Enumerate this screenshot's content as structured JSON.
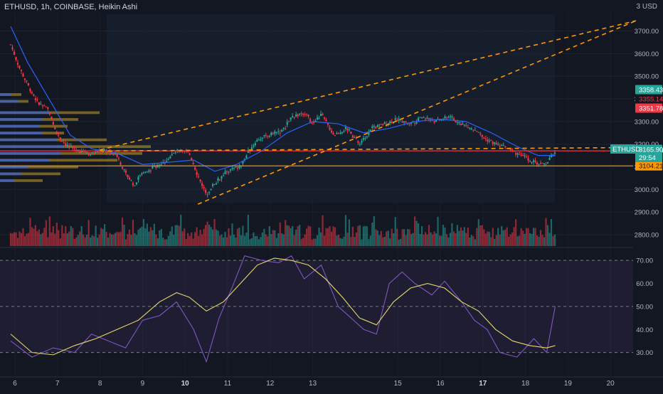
{
  "header": {
    "symbol_line": "ETHUSD, 1h, COINBASE, Heikin Ashi",
    "currency": "3 USD"
  },
  "chart_data": [
    {
      "type": "candlestick",
      "symbol": "ETHUSD",
      "interval": "1h",
      "exchange": "COINBASE",
      "style": "Heikin Ashi",
      "ylim": [
        2750,
        3780
      ],
      "y_ticks": [
        2800,
        2900,
        3000,
        3100,
        3200,
        3300,
        3400,
        3500,
        3600,
        3700
      ],
      "y_tick_labels": [
        "2800.00",
        "2900.00",
        "3000.00",
        "3100.00",
        "3200.00",
        "3300.00",
        "3400.00",
        "3500.00",
        "3600.00",
        "3700.00"
      ],
      "x_ticks": [
        {
          "label": "6",
          "day": 6,
          "bold": false
        },
        {
          "label": "7",
          "day": 7,
          "bold": false
        },
        {
          "label": "8",
          "day": 8,
          "bold": false
        },
        {
          "label": "9",
          "day": 9,
          "bold": false
        },
        {
          "label": "10",
          "day": 10,
          "bold": true
        },
        {
          "label": "11",
          "day": 11,
          "bold": false
        },
        {
          "label": "12",
          "day": 12,
          "bold": false
        },
        {
          "label": "13",
          "day": 13,
          "bold": false
        },
        {
          "label": "15",
          "day": 15,
          "bold": false
        },
        {
          "label": "16",
          "day": 16,
          "bold": false
        },
        {
          "label": "17",
          "day": 17,
          "bold": true
        },
        {
          "label": "18",
          "day": 18,
          "bold": false
        },
        {
          "label": "19",
          "day": 19,
          "bold": false
        },
        {
          "label": "20",
          "day": 20,
          "bold": false
        }
      ],
      "price_path": [
        [
          5.9,
          3640
        ],
        [
          6.1,
          3540
        ],
        [
          6.3,
          3460
        ],
        [
          6.55,
          3380
        ],
        [
          6.8,
          3350
        ],
        [
          7.0,
          3240
        ],
        [
          7.25,
          3190
        ],
        [
          7.5,
          3170
        ],
        [
          7.8,
          3160
        ],
        [
          8.2,
          3170
        ],
        [
          8.4,
          3150
        ],
        [
          8.6,
          3070
        ],
        [
          8.8,
          3020
        ],
        [
          9.0,
          3080
        ],
        [
          9.2,
          3090
        ],
        [
          9.5,
          3120
        ],
        [
          9.8,
          3170
        ],
        [
          10.1,
          3160
        ],
        [
          10.3,
          3060
        ],
        [
          10.5,
          2980
        ],
        [
          10.7,
          3030
        ],
        [
          11.0,
          3080
        ],
        [
          11.3,
          3100
        ],
        [
          11.5,
          3170
        ],
        [
          11.7,
          3220
        ],
        [
          12.0,
          3240
        ],
        [
          12.3,
          3260
        ],
        [
          12.5,
          3320
        ],
        [
          12.8,
          3340
        ],
        [
          13.0,
          3290
        ],
        [
          13.2,
          3330
        ],
        [
          13.5,
          3240
        ],
        [
          13.8,
          3270
        ],
        [
          14.1,
          3200
        ],
        [
          14.4,
          3270
        ],
        [
          14.7,
          3290
        ],
        [
          15.0,
          3310
        ],
        [
          15.3,
          3290
        ],
        [
          15.6,
          3320
        ],
        [
          15.9,
          3300
        ],
        [
          16.2,
          3320
        ],
        [
          16.5,
          3290
        ],
        [
          16.8,
          3260
        ],
        [
          17.0,
          3230
        ],
        [
          17.3,
          3200
        ],
        [
          17.6,
          3180
        ],
        [
          17.9,
          3150
        ],
        [
          18.2,
          3120
        ],
        [
          18.45,
          3110
        ],
        [
          18.7,
          3166
        ]
      ],
      "moving_average": [
        [
          5.9,
          3720
        ],
        [
          6.3,
          3560
        ],
        [
          6.8,
          3400
        ],
        [
          7.3,
          3240
        ],
        [
          7.8,
          3180
        ],
        [
          8.4,
          3160
        ],
        [
          9.0,
          3110
        ],
        [
          9.6,
          3120
        ],
        [
          10.2,
          3130
        ],
        [
          10.7,
          3080
        ],
        [
          11.2,
          3110
        ],
        [
          11.8,
          3170
        ],
        [
          12.4,
          3250
        ],
        [
          13.0,
          3300
        ],
        [
          13.6,
          3290
        ],
        [
          14.2,
          3250
        ],
        [
          14.8,
          3270
        ],
        [
          15.4,
          3300
        ],
        [
          16.0,
          3310
        ],
        [
          16.6,
          3300
        ],
        [
          17.2,
          3250
        ],
        [
          17.8,
          3190
        ],
        [
          18.3,
          3150
        ],
        [
          18.7,
          3150
        ]
      ],
      "volume_range": [
        0,
        100
      ],
      "horizontal_levels": [
        {
          "price": 3170.4,
          "label": "3170.40",
          "color": "#f23645"
        },
        {
          "price": 3104.21,
          "label": "3104.21",
          "color": "#ff9800"
        }
      ],
      "trend_lines": [
        {
          "from": [
            10.3,
            2935
          ],
          "to": [
            20.6,
            3745
          ],
          "color": "#ff9800",
          "style": "dashed"
        },
        {
          "from": [
            8.0,
            3170
          ],
          "to": [
            20.6,
            3185
          ],
          "color": "#ff9800",
          "style": "dashed"
        }
      ],
      "price_labels": [
        {
          "price": 3358.43,
          "label": "3358.43",
          "bg": "#26a69a",
          "text": "#ffffff"
        },
        {
          "price": 3355.14,
          "label": "3355.14",
          "bg": "#131722",
          "text": "#f23645"
        },
        {
          "price": 3351.78,
          "label": "3351.78",
          "bg": "#f23645",
          "text": "#ffffff"
        },
        {
          "price": 3170.4,
          "label": "3170.40",
          "bg": "#f23645",
          "text": "#ffffff"
        },
        {
          "price": 3165.9,
          "label": "3165.90",
          "bg": "#26a69a",
          "text": "#ffffff"
        },
        {
          "price": 3104.21,
          "label": "3104.21",
          "bg": "#ff9800",
          "text": "#131722"
        }
      ],
      "last_price": {
        "symbol": "ETHUSD",
        "price": "3165.90",
        "countdown": "29:54"
      }
    },
    {
      "type": "line",
      "name": "RSI",
      "ylim": [
        20,
        75
      ],
      "y_ticks": [
        30,
        40,
        50,
        60,
        70
      ],
      "y_tick_labels": [
        "30.00",
        "40.00",
        "50.00",
        "60.00",
        "70.00"
      ],
      "band": [
        30,
        70
      ],
      "series": [
        {
          "color": "#7e57c2",
          "points": [
            [
              5.9,
              35
            ],
            [
              6.4,
              28
            ],
            [
              6.9,
              32
            ],
            [
              7.4,
              30
            ],
            [
              7.8,
              38
            ],
            [
              8.2,
              35
            ],
            [
              8.6,
              32
            ],
            [
              9.0,
              44
            ],
            [
              9.4,
              46
            ],
            [
              9.8,
              52
            ],
            [
              10.2,
              40
            ],
            [
              10.5,
              26
            ],
            [
              10.8,
              45
            ],
            [
              11.1,
              58
            ],
            [
              11.4,
              72
            ],
            [
              11.8,
              70
            ],
            [
              12.2,
              69
            ],
            [
              12.5,
              72
            ],
            [
              12.8,
              62
            ],
            [
              13.2,
              68
            ],
            [
              13.6,
              50
            ],
            [
              13.9,
              45
            ],
            [
              14.2,
              40
            ],
            [
              14.5,
              38
            ],
            [
              14.8,
              60
            ],
            [
              15.1,
              65
            ],
            [
              15.4,
              60
            ],
            [
              15.8,
              55
            ],
            [
              16.1,
              61
            ],
            [
              16.5,
              52
            ],
            [
              16.8,
              44
            ],
            [
              17.1,
              40
            ],
            [
              17.4,
              30
            ],
            [
              17.8,
              28
            ],
            [
              18.2,
              36
            ],
            [
              18.5,
              30
            ],
            [
              18.7,
              50
            ]
          ]
        },
        {
          "color": "#e8d86a",
          "points": [
            [
              5.9,
              38
            ],
            [
              6.4,
              30
            ],
            [
              6.9,
              29
            ],
            [
              7.4,
              33
            ],
            [
              7.9,
              36
            ],
            [
              8.4,
              40
            ],
            [
              8.9,
              44
            ],
            [
              9.4,
              52
            ],
            [
              9.8,
              56
            ],
            [
              10.1,
              54
            ],
            [
              10.5,
              48
            ],
            [
              10.9,
              52
            ],
            [
              11.3,
              60
            ],
            [
              11.7,
              68
            ],
            [
              12.1,
              71
            ],
            [
              12.5,
              70
            ],
            [
              12.9,
              68
            ],
            [
              13.3,
              62
            ],
            [
              13.7,
              54
            ],
            [
              14.1,
              45
            ],
            [
              14.5,
              42
            ],
            [
              14.9,
              52
            ],
            [
              15.3,
              58
            ],
            [
              15.7,
              60
            ],
            [
              16.1,
              58
            ],
            [
              16.5,
              52
            ],
            [
              16.9,
              48
            ],
            [
              17.3,
              40
            ],
            [
              17.7,
              35
            ],
            [
              18.1,
              33
            ],
            [
              18.5,
              32
            ],
            [
              18.7,
              33
            ]
          ]
        }
      ]
    }
  ],
  "colors": {
    "background": "#131722",
    "up": "#26a69a",
    "down": "#f23645",
    "moving_average": "#2962ff",
    "volume_profile_long": "#c9a227",
    "volume_profile_short": "#2962ff",
    "rsi": "#7e57c2",
    "rsi_signal": "#e8d86a"
  }
}
